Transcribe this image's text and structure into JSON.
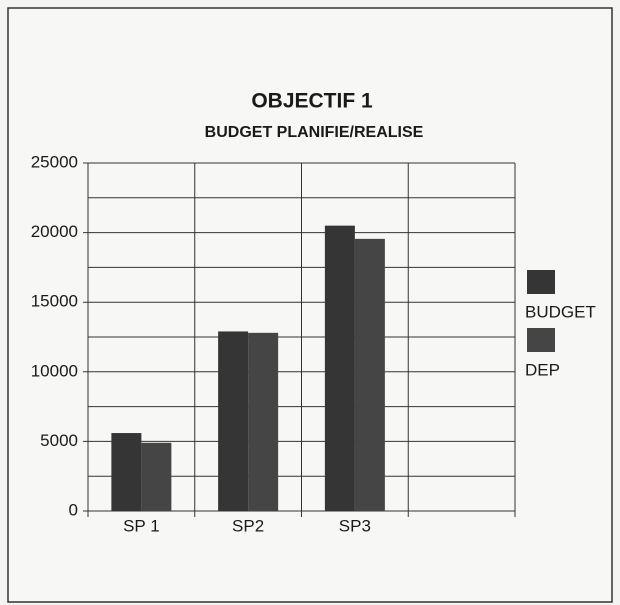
{
  "chart_data": {
    "type": "bar",
    "title": "OBJECTIF 1",
    "subtitle": "BUDGET PLANIFIE/REALISE",
    "categories": [
      "SP 1",
      "SP2",
      "SP3",
      null
    ],
    "series": [
      {
        "name": "BUDGET",
        "color": "#353535",
        "values": [
          5600,
          12900,
          20500,
          null
        ]
      },
      {
        "name": "DEP",
        "color": "#454545",
        "values": [
          4900,
          12800,
          19550,
          null
        ]
      }
    ],
    "ylim": [
      0,
      25000
    ],
    "yticks": [
      0,
      5000,
      10000,
      15000,
      20000,
      25000
    ],
    "yminor": [
      2500,
      7500,
      12500,
      17500,
      22500
    ],
    "grid": true,
    "legend": "right"
  }
}
